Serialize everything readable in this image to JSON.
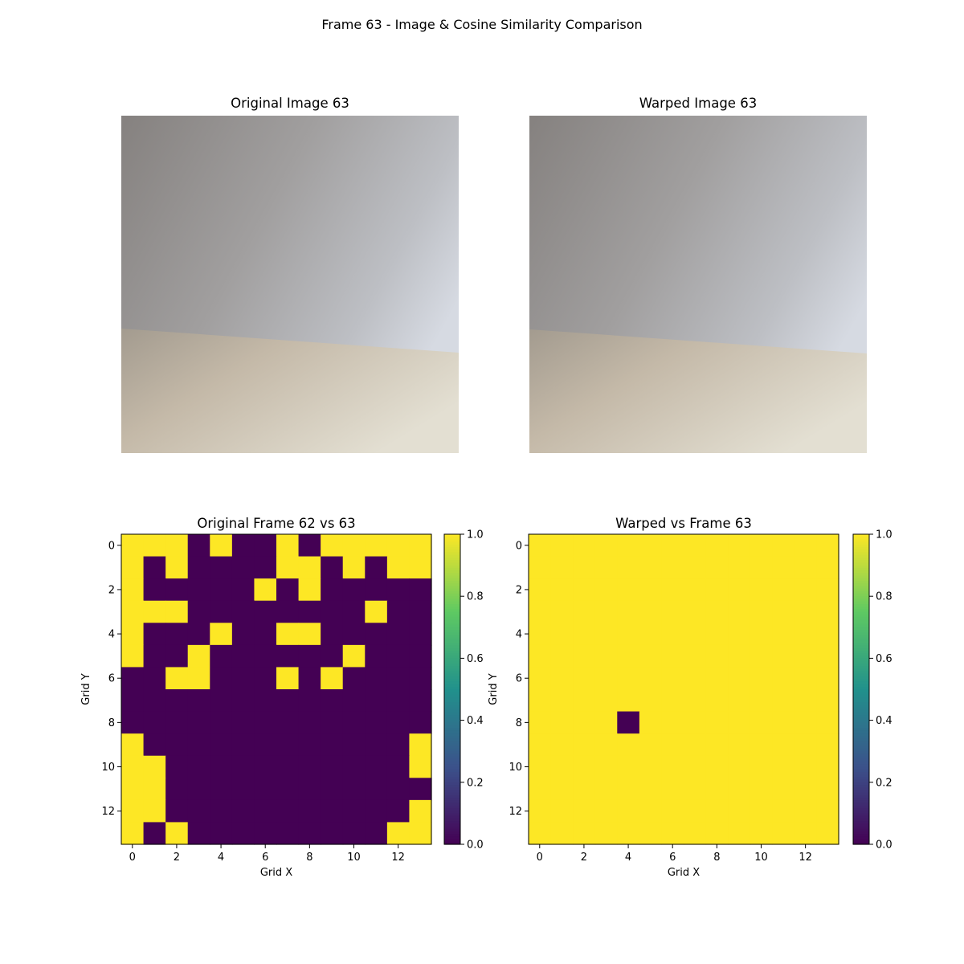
{
  "figure": {
    "suptitle": "Frame 63 - Image & Cosine Similarity Comparison",
    "panels": {
      "original_image": {
        "title": "Original Image 63",
        "icon": "camera-frame-image"
      },
      "warped_image": {
        "title": "Warped Image 63",
        "icon": "camera-frame-image"
      }
    }
  },
  "chart_data": [
    {
      "type": "heatmap",
      "title": "Original Frame 62 vs 63",
      "xlabel": "Grid X",
      "ylabel": "Grid Y",
      "x_ticks": [
        0,
        2,
        4,
        6,
        8,
        10,
        12
      ],
      "y_ticks": [
        0,
        2,
        4,
        6,
        8,
        10,
        12
      ],
      "colorbar": {
        "min": 0.0,
        "max": 1.0,
        "ticks": [
          "0.0",
          "0.2",
          "0.4",
          "0.6",
          "0.8",
          "1.0"
        ],
        "colormap": "viridis"
      },
      "z": [
        [
          1,
          1,
          1,
          0,
          1,
          0,
          0,
          1,
          0,
          1,
          1,
          1,
          1,
          1
        ],
        [
          1,
          0,
          1,
          0,
          0,
          0,
          0,
          1,
          1,
          0,
          1,
          0,
          1,
          1
        ],
        [
          1,
          0,
          0,
          0,
          0,
          0,
          1,
          0,
          1,
          0,
          0,
          0,
          0,
          0
        ],
        [
          1,
          1,
          1,
          0,
          0,
          0,
          0,
          0,
          0,
          0,
          0,
          1,
          0,
          0
        ],
        [
          1,
          0,
          0,
          0,
          1,
          0,
          0,
          1,
          1,
          0,
          0,
          0,
          0,
          0
        ],
        [
          1,
          0,
          0,
          1,
          0,
          0,
          0,
          0,
          0,
          0,
          1,
          0,
          0,
          0
        ],
        [
          0,
          0,
          1,
          1,
          0,
          0,
          0,
          1,
          0,
          1,
          0,
          0,
          0,
          0
        ],
        [
          0,
          0,
          0,
          0,
          0,
          0,
          0,
          0,
          0,
          0,
          0,
          0,
          0,
          0
        ],
        [
          0,
          0,
          0,
          0,
          0,
          0,
          0,
          0,
          0,
          0,
          0,
          0,
          0,
          0
        ],
        [
          1,
          0,
          0,
          0,
          0,
          0,
          0,
          0,
          0,
          0,
          0,
          0,
          0,
          1
        ],
        [
          1,
          1,
          0,
          0,
          0,
          0,
          0,
          0,
          0,
          0,
          0,
          0,
          0,
          1
        ],
        [
          1,
          1,
          0,
          0,
          0,
          0,
          0,
          0,
          0,
          0,
          0,
          0,
          0,
          0
        ],
        [
          1,
          1,
          0,
          0,
          0,
          0,
          0,
          0,
          0,
          0,
          0,
          0,
          0,
          1
        ],
        [
          1,
          0,
          1,
          0,
          0,
          0,
          0,
          0,
          0,
          0,
          0,
          0,
          1,
          1
        ]
      ]
    },
    {
      "type": "heatmap",
      "title": "Warped vs Frame 63",
      "xlabel": "Grid X",
      "ylabel": "Grid Y",
      "x_ticks": [
        0,
        2,
        4,
        6,
        8,
        10,
        12
      ],
      "y_ticks": [
        0,
        2,
        4,
        6,
        8,
        10,
        12
      ],
      "colorbar": {
        "min": 0.0,
        "max": 1.0,
        "ticks": [
          "0.0",
          "0.2",
          "0.4",
          "0.6",
          "0.8",
          "1.0"
        ],
        "colormap": "viridis"
      },
      "z": [
        [
          1,
          1,
          1,
          1,
          1,
          1,
          1,
          1,
          1,
          1,
          1,
          1,
          1,
          1
        ],
        [
          1,
          1,
          1,
          1,
          1,
          1,
          1,
          1,
          1,
          1,
          1,
          1,
          1,
          1
        ],
        [
          1,
          1,
          1,
          1,
          1,
          1,
          1,
          1,
          1,
          1,
          1,
          1,
          1,
          1
        ],
        [
          1,
          1,
          1,
          1,
          1,
          1,
          1,
          1,
          1,
          1,
          1,
          1,
          1,
          1
        ],
        [
          1,
          1,
          1,
          1,
          1,
          1,
          1,
          1,
          1,
          1,
          1,
          1,
          1,
          1
        ],
        [
          1,
          1,
          1,
          1,
          1,
          1,
          1,
          1,
          1,
          1,
          1,
          1,
          1,
          1
        ],
        [
          1,
          1,
          1,
          1,
          1,
          1,
          1,
          1,
          1,
          1,
          1,
          1,
          1,
          1
        ],
        [
          1,
          1,
          1,
          1,
          1,
          1,
          1,
          1,
          1,
          1,
          1,
          1,
          1,
          1
        ],
        [
          1,
          1,
          1,
          1,
          0,
          1,
          1,
          1,
          1,
          1,
          1,
          1,
          1,
          1
        ],
        [
          1,
          1,
          1,
          1,
          1,
          1,
          1,
          1,
          1,
          1,
          1,
          1,
          1,
          1
        ],
        [
          1,
          1,
          1,
          1,
          1,
          1,
          1,
          1,
          1,
          1,
          1,
          1,
          1,
          1
        ],
        [
          1,
          1,
          1,
          1,
          1,
          1,
          1,
          1,
          1,
          1,
          1,
          1,
          1,
          1
        ],
        [
          1,
          1,
          1,
          1,
          1,
          1,
          1,
          1,
          1,
          1,
          1,
          1,
          1,
          1
        ],
        [
          1,
          1,
          1,
          1,
          1,
          1,
          1,
          1,
          1,
          1,
          1,
          1,
          1,
          1
        ]
      ]
    }
  ]
}
